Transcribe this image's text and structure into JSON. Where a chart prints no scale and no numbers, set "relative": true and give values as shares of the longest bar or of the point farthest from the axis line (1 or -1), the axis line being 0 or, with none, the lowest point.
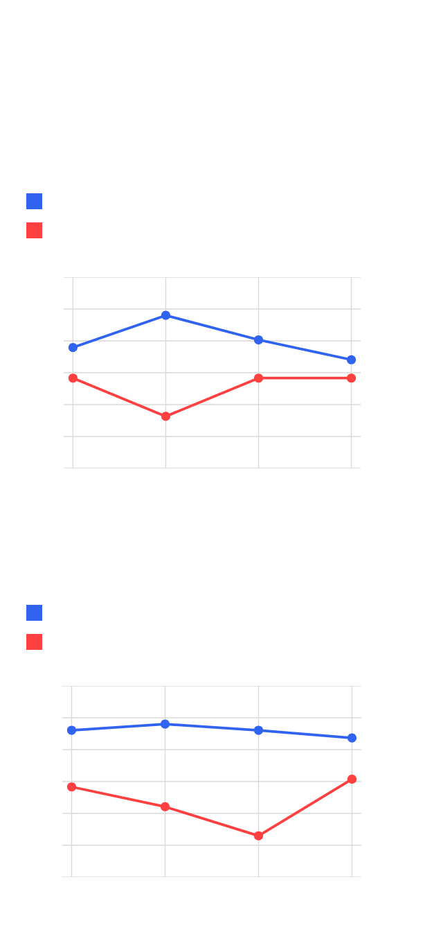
{
  "chart_data": [
    {
      "type": "line",
      "relative": true,
      "categories": [
        null,
        null,
        null,
        null
      ],
      "grid": true,
      "marker": "circle",
      "line_style": "solid",
      "series": [
        {
          "color": "#2f63f0",
          "values": [
            0.79,
            1,
            0.84,
            0.71
          ]
        },
        {
          "color": "#ff4040",
          "values": [
            0.59,
            0.34,
            0.59,
            0.59
          ]
        }
      ]
    },
    {
      "type": "line",
      "relative": true,
      "categories": [
        null,
        null,
        null,
        null
      ],
      "grid": true,
      "marker": "circle",
      "line_style": "solid",
      "series": [
        {
          "color": "#2f63f0",
          "values": [
            0.96,
            1,
            0.96,
            0.91
          ]
        },
        {
          "color": "#ff4040",
          "values": [
            0.59,
            0.46,
            0.27,
            0.64
          ]
        }
      ]
    }
  ]
}
